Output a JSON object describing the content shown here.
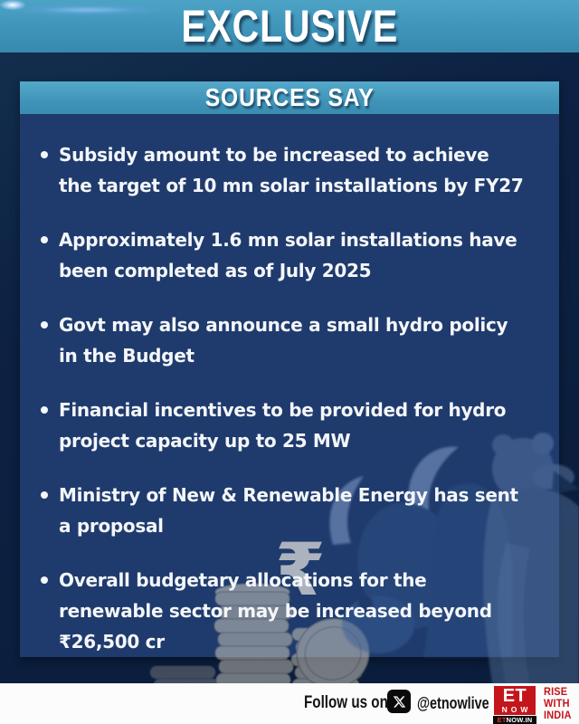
{
  "banner": {
    "title": "EXCLUSIVE"
  },
  "card": {
    "header": "SOURCES SAY",
    "bullets": [
      [
        "Subsidy amount to be increased to achieve",
        "the target of 10 mn solar installations by FY27"
      ],
      [
        "Approximately 1.6 mn solar installations have",
        "been completed as of July 2025"
      ],
      [
        "Govt may also announce a small hydro policy",
        "in the Budget"
      ],
      [
        "Financial incentives to be provided for hydro",
        "project capacity up to 25 MW"
      ],
      [
        "Ministry of New & Renewable Energy has sent",
        "a proposal"
      ],
      [
        "Overall budgetary allocations for the",
        "renewable sector may be increased beyond",
        "₹26,500 cr"
      ]
    ]
  },
  "decor": {
    "rupee_watermark": "₹"
  },
  "footer": {
    "follow_label": "Follow us on",
    "handle": "@etnowlive",
    "logo": {
      "top": "ET",
      "mid": "NOW",
      "strip_red": "ET",
      "strip_white": "NOW.IN"
    },
    "tagline_lines": [
      "RISE",
      "WITH",
      "INDIA"
    ]
  },
  "colors": {
    "teal": "#3f94b9",
    "card": "#1f3b6d",
    "bg": "#0c2143",
    "bg_hi": "#14304f",
    "red": "#c4151b",
    "text": "#f4f6f9",
    "footer_bg": "#fcfcfc"
  }
}
